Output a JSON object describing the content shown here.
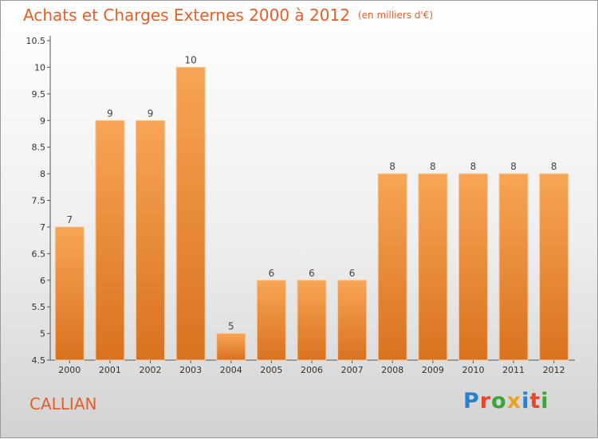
{
  "header": {
    "title": "Achats et Charges Externes 2000 à 2012",
    "unit": "(en milliers d'€)"
  },
  "footer": {
    "town": "CALLIAN",
    "logo": "Proxiti"
  },
  "colors": {
    "title": "#e2602a",
    "bar_top": "#f7a556",
    "bar_bottom": "#d9721f"
  },
  "chart_data": {
    "type": "bar",
    "categories": [
      "2000",
      "2001",
      "2002",
      "2003",
      "2004",
      "2005",
      "2006",
      "2007",
      "2008",
      "2009",
      "2010",
      "2011",
      "2012"
    ],
    "values": [
      7,
      9,
      9,
      10,
      5,
      6,
      6,
      6,
      8,
      8,
      8,
      8,
      8
    ],
    "data_labels": [
      "7",
      "9",
      "9",
      "10",
      "5",
      "6",
      "6",
      "6",
      "8",
      "8",
      "8",
      "8",
      "8"
    ],
    "title": "Achats et Charges Externes 2000 à 2012",
    "xlabel": "",
    "ylabel": "",
    "ylim": [
      4.5,
      10.5
    ],
    "yticks": [
      "4.5",
      "5",
      "5.5",
      "6",
      "6.5",
      "7",
      "7.5",
      "8",
      "8.5",
      "9",
      "9.5",
      "10",
      "10.5"
    ],
    "grid": false
  }
}
